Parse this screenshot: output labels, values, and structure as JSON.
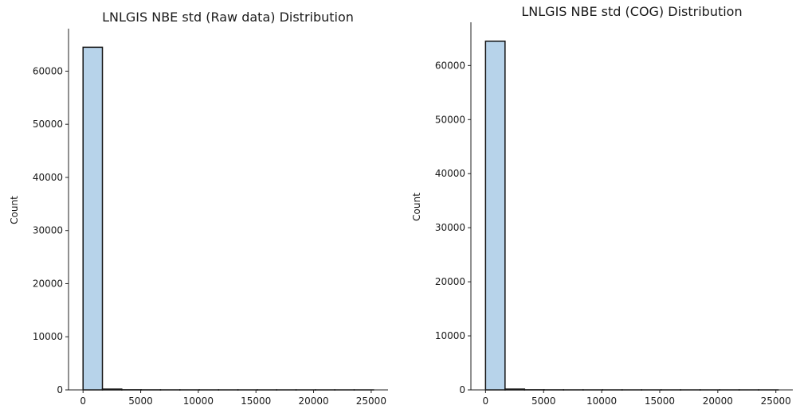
{
  "chart_data": [
    {
      "type": "bar",
      "title": "LNLGIS NBE std (Raw data) Distribution",
      "xlabel": "",
      "ylabel": "Count",
      "xlim": [
        -1260,
        26460
      ],
      "ylim": [
        0,
        68000
      ],
      "x_ticks": [
        0,
        5000,
        10000,
        15000,
        20000,
        25000
      ],
      "y_ticks": [
        0,
        10000,
        20000,
        30000,
        40000,
        50000,
        60000
      ],
      "bins": [
        {
          "start": 0,
          "end": 1680,
          "count": 64500
        },
        {
          "start": 1680,
          "end": 3360,
          "count": 150
        },
        {
          "start": 3360,
          "end": 5040,
          "count": 20
        },
        {
          "start": 5040,
          "end": 6720,
          "count": 10
        },
        {
          "start": 6720,
          "end": 8400,
          "count": 5
        },
        {
          "start": 8400,
          "end": 10080,
          "count": 4
        },
        {
          "start": 10080,
          "end": 11760,
          "count": 3
        },
        {
          "start": 11760,
          "end": 13440,
          "count": 2
        },
        {
          "start": 13440,
          "end": 15120,
          "count": 2
        },
        {
          "start": 15120,
          "end": 16800,
          "count": 1
        },
        {
          "start": 16800,
          "end": 18480,
          "count": 1
        },
        {
          "start": 18480,
          "end": 20160,
          "count": 1
        },
        {
          "start": 20160,
          "end": 21840,
          "count": 1
        },
        {
          "start": 21840,
          "end": 23520,
          "count": 1
        },
        {
          "start": 23520,
          "end": 25200,
          "count": 1
        }
      ],
      "bar_color": "#b7d3ea",
      "edge_color": "#111111",
      "grid": false
    },
    {
      "type": "bar",
      "title": "LNLGIS NBE std (COG) Distribution",
      "xlabel": "",
      "ylabel": "Count",
      "xlim": [
        -1260,
        26460
      ],
      "ylim": [
        0,
        68000
      ],
      "x_ticks": [
        0,
        5000,
        10000,
        15000,
        20000,
        25000
      ],
      "y_ticks": [
        0,
        10000,
        20000,
        30000,
        40000,
        50000,
        60000
      ],
      "bins": [
        {
          "start": 0,
          "end": 1680,
          "count": 64500
        },
        {
          "start": 1680,
          "end": 3360,
          "count": 150
        },
        {
          "start": 3360,
          "end": 5040,
          "count": 20
        },
        {
          "start": 5040,
          "end": 6720,
          "count": 10
        },
        {
          "start": 6720,
          "end": 8400,
          "count": 5
        },
        {
          "start": 8400,
          "end": 10080,
          "count": 4
        },
        {
          "start": 10080,
          "end": 11760,
          "count": 3
        },
        {
          "start": 11760,
          "end": 13440,
          "count": 2
        },
        {
          "start": 13440,
          "end": 15120,
          "count": 2
        },
        {
          "start": 15120,
          "end": 16800,
          "count": 1
        },
        {
          "start": 16800,
          "end": 18480,
          "count": 1
        },
        {
          "start": 18480,
          "end": 20160,
          "count": 1
        },
        {
          "start": 20160,
          "end": 21840,
          "count": 1
        },
        {
          "start": 21840,
          "end": 23520,
          "count": 1
        },
        {
          "start": 23520,
          "end": 25200,
          "count": 1
        }
      ],
      "bar_color": "#b7d3ea",
      "edge_color": "#111111",
      "grid": false
    }
  ]
}
